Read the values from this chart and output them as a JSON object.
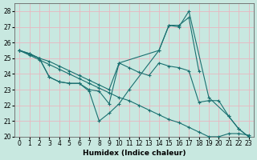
{
  "xlabel": "Humidex (Indice chaleur)",
  "bg_color": "#c8e8e0",
  "line_color": "#1a7070",
  "grid_color": "#d8ece6",
  "xlim": [
    -0.5,
    23.5
  ],
  "ylim": [
    20,
    28.5
  ],
  "yticks": [
    20,
    21,
    22,
    23,
    24,
    25,
    26,
    27,
    28
  ],
  "xticks": [
    0,
    1,
    2,
    3,
    4,
    5,
    6,
    7,
    8,
    9,
    10,
    11,
    12,
    13,
    14,
    15,
    16,
    17,
    18,
    19,
    20,
    21,
    22,
    23
  ],
  "series1_x": [
    0,
    1,
    2,
    3,
    4,
    5,
    6,
    7,
    8,
    9,
    10,
    11,
    14,
    15,
    16,
    17,
    18
  ],
  "series1_y": [
    25.5,
    25.3,
    25.0,
    23.8,
    23.5,
    23.4,
    23.4,
    22.9,
    21.0,
    21.5,
    22.1,
    23.0,
    25.5,
    27.1,
    27.1,
    27.6,
    24.2
  ],
  "series2_x": [
    0,
    1,
    2,
    3,
    4,
    5,
    6,
    7,
    8,
    9,
    10,
    11,
    12,
    13,
    14,
    15,
    16,
    17,
    18,
    19,
    20,
    21,
    22,
    23
  ],
  "series2_y": [
    25.5,
    25.3,
    25.0,
    24.8,
    24.5,
    24.2,
    23.9,
    23.6,
    23.3,
    23.0,
    24.7,
    24.4,
    24.1,
    23.9,
    24.7,
    24.5,
    24.4,
    24.2,
    22.2,
    22.3,
    22.3,
    21.3,
    20.5,
    20.0
  ],
  "series3_x": [
    0,
    1,
    2,
    3,
    4,
    5,
    6,
    7,
    8,
    9,
    10,
    11,
    12,
    13,
    14,
    15,
    16,
    17,
    18,
    19,
    20,
    21,
    22,
    23
  ],
  "series3_y": [
    25.5,
    25.2,
    24.9,
    24.6,
    24.3,
    24.0,
    23.7,
    23.4,
    23.1,
    22.8,
    22.5,
    22.3,
    22.0,
    21.7,
    21.4,
    21.1,
    20.9,
    20.6,
    20.3,
    20.0,
    20.0,
    20.2,
    20.2,
    20.1
  ],
  "series4_x": [
    0,
    2,
    3,
    4,
    5,
    6,
    7,
    8,
    9,
    10,
    14,
    15,
    16,
    17,
    19,
    21,
    22,
    23
  ],
  "series4_y": [
    25.5,
    25.0,
    23.8,
    23.5,
    23.4,
    23.4,
    23.0,
    22.9,
    22.1,
    24.7,
    25.5,
    27.1,
    27.0,
    28.0,
    22.5,
    21.3,
    20.5,
    20.0
  ]
}
